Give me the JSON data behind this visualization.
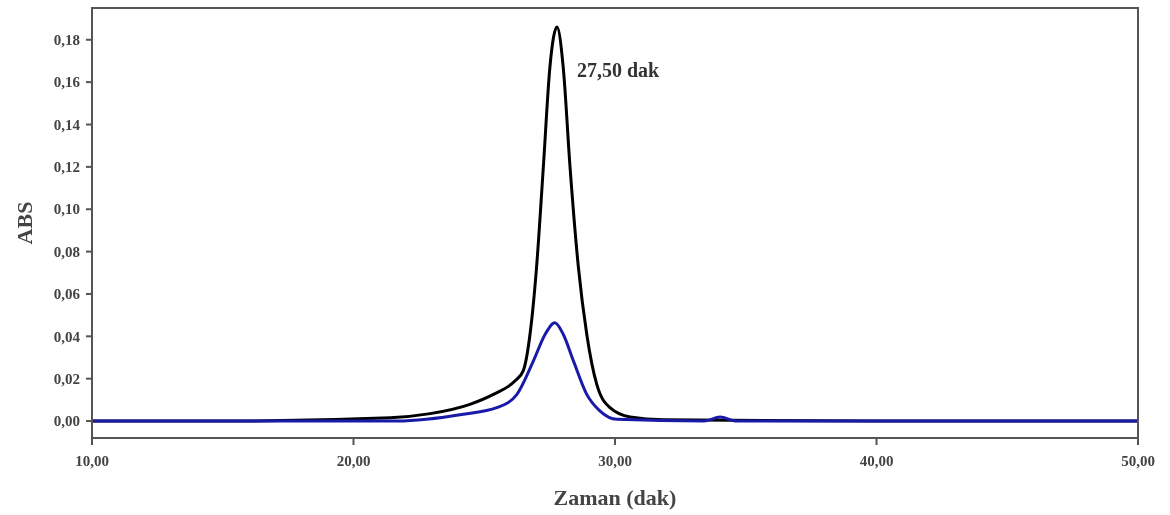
{
  "chart_data": {
    "type": "line",
    "xlabel": "Zaman (dak)",
    "ylabel": "ABS",
    "xlim": [
      10,
      50
    ],
    "ylim": [
      -0.008,
      0.195
    ],
    "xticks": [
      {
        "value": 10,
        "label": "10,00"
      },
      {
        "value": 20,
        "label": "20,00"
      },
      {
        "value": 30,
        "label": "30,00"
      },
      {
        "value": 40,
        "label": "40,00"
      },
      {
        "value": 50,
        "label": "50,00"
      }
    ],
    "yticks": [
      {
        "value": 0,
        "label": "0,00"
      },
      {
        "value": 0.02,
        "label": "0,02"
      },
      {
        "value": 0.04,
        "label": "0,04"
      },
      {
        "value": 0.06,
        "label": "0,06"
      },
      {
        "value": 0.08,
        "label": "0,08"
      },
      {
        "value": 0.1,
        "label": "0,10"
      },
      {
        "value": 0.12,
        "label": "0,12"
      },
      {
        "value": 0.14,
        "label": "0,14"
      },
      {
        "value": 0.16,
        "label": "0,16"
      },
      {
        "value": 0.18,
        "label": "0,18"
      }
    ],
    "grid": false,
    "marker": "none",
    "line_style": "solid",
    "annotations": [
      {
        "text": "27,50 dak",
        "x": 27.78,
        "y": 0.186
      }
    ],
    "series": [
      {
        "color": "#000000",
        "x": [
          10,
          15,
          21.4,
          22.93,
          24.45,
          25.35,
          26.18,
          26.49,
          26.75,
          27.0,
          27.26,
          27.51,
          27.78,
          28.02,
          28.28,
          28.6,
          28.92,
          29.3,
          29.81,
          30.58,
          31.85,
          40,
          50
        ],
        "values": [
          0,
          0,
          0.0016,
          0.0035,
          0.0079,
          0.0126,
          0.019,
          0.0237,
          0.041,
          0.0726,
          0.12,
          0.167,
          0.186,
          0.167,
          0.12,
          0.0726,
          0.041,
          0.0174,
          0.0063,
          0.0019,
          0.0006,
          0,
          0
        ]
      },
      {
        "color": "#1a1aa8",
        "x": [
          10,
          15,
          21.66,
          24.2,
          25.48,
          26.25,
          26.88,
          27.33,
          27.7,
          28.02,
          28.41,
          28.92,
          29.43,
          30.07,
          33.4,
          34.02,
          34.65,
          40,
          50
        ],
        "values": [
          0,
          0,
          0,
          0.0032,
          0.0063,
          0.0126,
          0.0284,
          0.041,
          0.0464,
          0.041,
          0.0284,
          0.0126,
          0.0047,
          0.0008,
          0,
          0.0019,
          0,
          0,
          0
        ]
      }
    ]
  }
}
